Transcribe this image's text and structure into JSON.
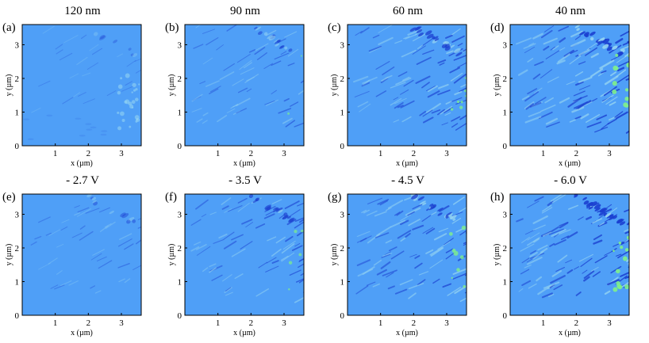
{
  "panels": [
    {
      "letter": "(a)",
      "title": "120 nm",
      "intensity": 0.05
    },
    {
      "letter": "(b)",
      "title": "90 nm",
      "intensity": 0.45
    },
    {
      "letter": "(c)",
      "title": "60 nm",
      "intensity": 0.75
    },
    {
      "letter": "(d)",
      "title": "40 nm",
      "intensity": 1.0
    },
    {
      "letter": "(e)",
      "title": "- 2.7 V",
      "intensity": 0.25
    },
    {
      "letter": "(f)",
      "title": "- 3.5 V",
      "intensity": 0.6
    },
    {
      "letter": "(g)",
      "title": "- 4.5 V",
      "intensity": 0.8
    },
    {
      "letter": "(h)",
      "title": "- 6.0 V",
      "intensity": 1.0
    }
  ],
  "axes": {
    "xlabel": "x (µm)",
    "ylabel": "y (µm)",
    "x_ticks": [
      "1",
      "2",
      "3"
    ],
    "y_ticks": [
      "0",
      "1",
      "2",
      "3"
    ]
  },
  "colors": {
    "background": "#4f9ff7",
    "dark_feature": "#1b3fd0",
    "light_feature": "#93d3f2",
    "bright_feature": "#7ff08a"
  },
  "chart_data": {
    "type": "heatmap",
    "grid": [
      2,
      4
    ],
    "x_range_um": [
      0,
      3.6
    ],
    "y_range_um": [
      0,
      3.6
    ],
    "xlabel": "x (µm)",
    "ylabel": "y (µm)",
    "panels": [
      "120 nm",
      "90 nm",
      "60 nm",
      "40 nm",
      "- 2.7 V",
      "- 3.5 V",
      "- 4.5 V",
      "- 6.0 V"
    ]
  }
}
